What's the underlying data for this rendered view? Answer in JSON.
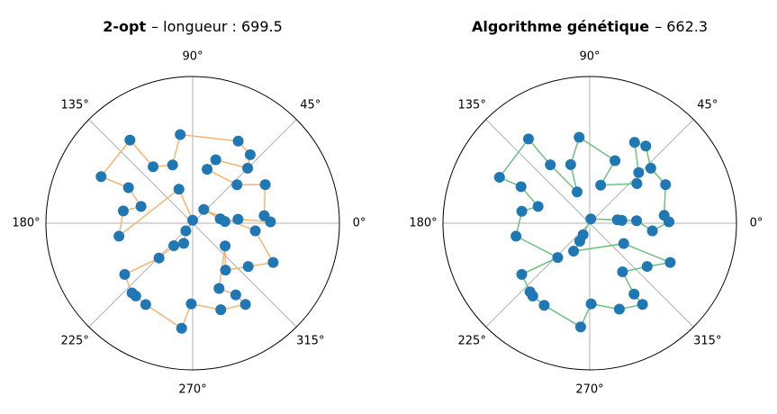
{
  "chart_data": [
    {
      "type": "polar",
      "title": "2-opt",
      "subtitle": "– longueur : 699.5",
      "color": "#f5b56f",
      "marker_color": "#1f77b4",
      "theta": [
        98,
        61,
        50,
        45,
        70,
        75,
        41,
        28,
        6,
        1,
        5,
        3,
        9,
        51,
        353,
        334,
        322,
        305,
        325,
        292,
        301,
        303,
        288,
        269,
        264,
        240,
        232,
        229,
        217,
        226,
        230,
        246,
        228,
        90,
        112,
        190,
        170,
        162,
        151,
        153,
        127,
        125,
        109
      ],
      "r": [
        0.61,
        0.64,
        0.61,
        0.53,
        0.46,
        0.38,
        0.4,
        0.56,
        0.49,
        0.53,
        0.31,
        0.22,
        0.19,
        0.12,
        0.43,
        0.61,
        0.48,
        0.39,
        0.27,
        0.48,
        0.57,
        0.66,
        0.62,
        0.55,
        0.72,
        0.64,
        0.63,
        0.63,
        0.58,
        0.33,
        0.2,
        0.15,
        0.07,
        0.02,
        0.25,
        0.51,
        0.48,
        0.37,
        0.5,
        0.7,
        0.71,
        0.47,
        0.42
      ],
      "rlim": [
        0,
        1
      ],
      "grid": true,
      "thetaticks": [
        {
          "value": 0,
          "label": "0°"
        },
        {
          "value": 45,
          "label": "45°"
        },
        {
          "value": 90,
          "label": "90°"
        },
        {
          "value": 135,
          "label": "135°"
        },
        {
          "value": 180,
          "label": "180°"
        },
        {
          "value": 225,
          "label": "225°"
        },
        {
          "value": 270,
          "label": "270°"
        },
        {
          "value": 315,
          "label": "315°"
        }
      ]
    },
    {
      "type": "polar",
      "title": "Algorithme génétique",
      "subtitle": "– 662.3",
      "color": "#6cc17f",
      "marker_color": "#1f77b4",
      "theta": [
        97,
        68,
        74,
        40,
        46,
        61,
        54,
        42,
        27,
        6,
        1,
        353,
        3,
        5,
        7,
        76,
        240,
        241,
        240,
        329,
        334,
        323,
        304,
        302,
        303,
        289,
        271,
        265,
        241,
        232,
        229,
        217,
        227,
        190,
        170,
        162,
        152,
        153,
        126,
        124,
        112,
        108
      ],
      "r": [
        0.59,
        0.46,
        0.27,
        0.42,
        0.48,
        0.63,
        0.65,
        0.56,
        0.58,
        0.51,
        0.54,
        0.43,
        0.32,
        0.22,
        0.19,
        0.03,
        0.09,
        0.14,
        0.22,
        0.27,
        0.61,
        0.49,
        0.4,
        0.57,
        0.66,
        0.62,
        0.55,
        0.71,
        0.64,
        0.63,
        0.62,
        0.58,
        0.32,
        0.51,
        0.47,
        0.37,
        0.53,
        0.69,
        0.71,
        0.48,
        0.23,
        0.42
      ],
      "rlim": [
        0,
        1
      ],
      "grid": true,
      "thetaticks": [
        {
          "value": 0,
          "label": "0°"
        },
        {
          "value": 45,
          "label": "45°"
        },
        {
          "value": 90,
          "label": "90°"
        },
        {
          "value": 135,
          "label": "135°"
        },
        {
          "value": 180,
          "label": "180°"
        },
        {
          "value": 225,
          "label": "225°"
        },
        {
          "value": 270,
          "label": "270°"
        },
        {
          "value": 315,
          "label": "315°"
        }
      ]
    }
  ]
}
